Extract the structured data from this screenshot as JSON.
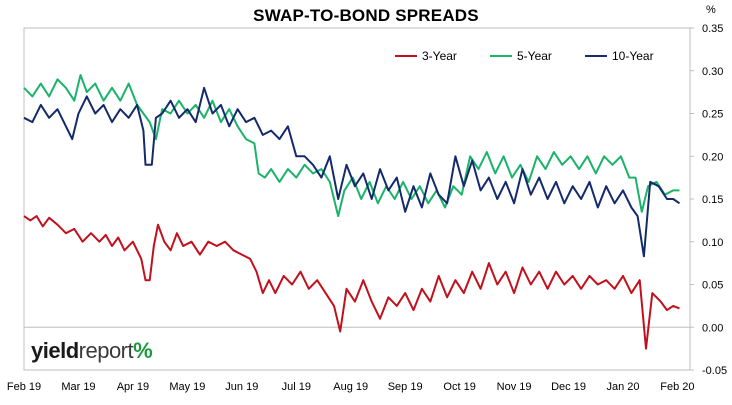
{
  "chart_data": {
    "type": "line",
    "title": "SWAP-TO-BOND SPREADS",
    "unit": "%",
    "x_tick_labels": [
      "Feb 19",
      "Mar 19",
      "Apr 19",
      "May 19",
      "Jun 19",
      "Jul 19",
      "Aug 19",
      "Sep 19",
      "Oct 19",
      "Nov 19",
      "Dec 19",
      "Jan 20",
      "Feb 20"
    ],
    "y_tick_labels": [
      "0.35",
      "0.30",
      "0.25",
      "0.20",
      "0.15",
      "0.10",
      "0.05",
      "0.00",
      "-0.05"
    ],
    "ylim": [
      -0.05,
      0.35
    ],
    "grid": false,
    "legend_position": "top-right",
    "x_units": "months since Feb 19 (0 = Feb 19, 12 = Feb 20)",
    "series": [
      {
        "name": "3-Year",
        "color": "#c0111d",
        "points": [
          [
            0,
            0.13
          ],
          [
            0.15,
            0.125
          ],
          [
            0.3,
            0.13
          ],
          [
            0.45,
            0.118
          ],
          [
            0.6,
            0.128
          ],
          [
            0.8,
            0.12
          ],
          [
            1,
            0.11
          ],
          [
            1.2,
            0.115
          ],
          [
            1.4,
            0.1
          ],
          [
            1.6,
            0.11
          ],
          [
            1.8,
            0.1
          ],
          [
            1.95,
            0.108
          ],
          [
            2.1,
            0.095
          ],
          [
            2.25,
            0.105
          ],
          [
            2.4,
            0.09
          ],
          [
            2.6,
            0.1
          ],
          [
            2.8,
            0.08
          ],
          [
            2.9,
            0.055
          ],
          [
            3.0,
            0.055
          ],
          [
            3.1,
            0.095
          ],
          [
            3.2,
            0.12
          ],
          [
            3.35,
            0.1
          ],
          [
            3.5,
            0.09
          ],
          [
            3.65,
            0.11
          ],
          [
            3.8,
            0.095
          ],
          [
            4.0,
            0.1
          ],
          [
            4.2,
            0.085
          ],
          [
            4.4,
            0.1
          ],
          [
            4.6,
            0.095
          ],
          [
            4.8,
            0.1
          ],
          [
            5.0,
            0.09
          ],
          [
            5.2,
            0.085
          ],
          [
            5.4,
            0.08
          ],
          [
            5.55,
            0.065
          ],
          [
            5.7,
            0.04
          ],
          [
            5.85,
            0.055
          ],
          [
            6.0,
            0.04
          ],
          [
            6.2,
            0.06
          ],
          [
            6.4,
            0.05
          ],
          [
            6.6,
            0.065
          ],
          [
            6.8,
            0.045
          ],
          [
            7.0,
            0.055
          ],
          [
            7.2,
            0.04
          ],
          [
            7.4,
            0.025
          ],
          [
            7.55,
            -0.005
          ],
          [
            7.7,
            0.045
          ],
          [
            7.9,
            0.03
          ],
          [
            8.1,
            0.055
          ],
          [
            8.3,
            0.03
          ],
          [
            8.5,
            0.01
          ],
          [
            8.7,
            0.035
          ],
          [
            8.9,
            0.025
          ],
          [
            9.1,
            0.04
          ],
          [
            9.3,
            0.02
          ],
          [
            9.5,
            0.045
          ],
          [
            9.7,
            0.03
          ],
          [
            9.9,
            0.06
          ],
          [
            10.1,
            0.035
          ],
          [
            10.3,
            0.055
          ],
          [
            10.5,
            0.04
          ],
          [
            10.7,
            0.065
          ],
          [
            10.9,
            0.045
          ],
          [
            11.1,
            0.075
          ],
          [
            11.3,
            0.05
          ],
          [
            11.5,
            0.065
          ],
          [
            11.7,
            0.04
          ],
          [
            11.9,
            0.07
          ],
          [
            12.1,
            0.05
          ],
          [
            12.3,
            0.065
          ],
          [
            12.5,
            0.045
          ],
          [
            12.7,
            0.065
          ],
          [
            12.9,
            0.05
          ],
          [
            13.1,
            0.06
          ],
          [
            13.3,
            0.045
          ],
          [
            13.5,
            0.06
          ],
          [
            13.7,
            0.05
          ],
          [
            13.9,
            0.055
          ],
          [
            14.1,
            0.045
          ],
          [
            14.3,
            0.06
          ],
          [
            14.5,
            0.04
          ],
          [
            14.7,
            0.055
          ],
          [
            14.85,
            -0.025
          ],
          [
            15.0,
            0.04
          ],
          [
            15.2,
            0.03
          ],
          [
            15.35,
            0.02
          ],
          [
            15.5,
            0.025
          ],
          [
            15.65,
            0.022
          ]
        ]
      },
      {
        "name": "5-Year",
        "color": "#1ab36a",
        "points": [
          [
            0,
            0.28
          ],
          [
            0.2,
            0.27
          ],
          [
            0.4,
            0.285
          ],
          [
            0.6,
            0.27
          ],
          [
            0.8,
            0.29
          ],
          [
            1.0,
            0.28
          ],
          [
            1.2,
            0.265
          ],
          [
            1.35,
            0.295
          ],
          [
            1.5,
            0.275
          ],
          [
            1.7,
            0.285
          ],
          [
            1.9,
            0.265
          ],
          [
            2.1,
            0.28
          ],
          [
            2.3,
            0.265
          ],
          [
            2.5,
            0.285
          ],
          [
            2.7,
            0.26
          ],
          [
            2.85,
            0.25
          ],
          [
            3.0,
            0.24
          ],
          [
            3.15,
            0.22
          ],
          [
            3.3,
            0.255
          ],
          [
            3.5,
            0.25
          ],
          [
            3.7,
            0.265
          ],
          [
            3.9,
            0.25
          ],
          [
            4.1,
            0.26
          ],
          [
            4.3,
            0.245
          ],
          [
            4.5,
            0.265
          ],
          [
            4.7,
            0.24
          ],
          [
            4.9,
            0.255
          ],
          [
            5.1,
            0.235
          ],
          [
            5.3,
            0.22
          ],
          [
            5.5,
            0.215
          ],
          [
            5.6,
            0.18
          ],
          [
            5.75,
            0.175
          ],
          [
            5.9,
            0.185
          ],
          [
            6.1,
            0.17
          ],
          [
            6.3,
            0.185
          ],
          [
            6.5,
            0.175
          ],
          [
            6.7,
            0.19
          ],
          [
            6.9,
            0.18
          ],
          [
            7.1,
            0.185
          ],
          [
            7.3,
            0.17
          ],
          [
            7.5,
            0.13
          ],
          [
            7.65,
            0.16
          ],
          [
            7.85,
            0.175
          ],
          [
            8.05,
            0.15
          ],
          [
            8.25,
            0.17
          ],
          [
            8.45,
            0.145
          ],
          [
            8.65,
            0.165
          ],
          [
            8.85,
            0.15
          ],
          [
            9.05,
            0.17
          ],
          [
            9.25,
            0.15
          ],
          [
            9.45,
            0.165
          ],
          [
            9.65,
            0.145
          ],
          [
            9.85,
            0.16
          ],
          [
            10.05,
            0.14
          ],
          [
            10.25,
            0.165
          ],
          [
            10.45,
            0.155
          ],
          [
            10.65,
            0.2
          ],
          [
            10.85,
            0.185
          ],
          [
            11.05,
            0.205
          ],
          [
            11.25,
            0.18
          ],
          [
            11.45,
            0.2
          ],
          [
            11.65,
            0.175
          ],
          [
            11.85,
            0.19
          ],
          [
            12.05,
            0.17
          ],
          [
            12.25,
            0.2
          ],
          [
            12.45,
            0.185
          ],
          [
            12.65,
            0.205
          ],
          [
            12.85,
            0.19
          ],
          [
            13.05,
            0.2
          ],
          [
            13.25,
            0.185
          ],
          [
            13.45,
            0.2
          ],
          [
            13.65,
            0.18
          ],
          [
            13.85,
            0.2
          ],
          [
            14.05,
            0.19
          ],
          [
            14.25,
            0.2
          ],
          [
            14.45,
            0.175
          ],
          [
            14.6,
            0.175
          ],
          [
            14.75,
            0.135
          ],
          [
            14.9,
            0.165
          ],
          [
            15.1,
            0.17
          ],
          [
            15.3,
            0.155
          ],
          [
            15.5,
            0.16
          ],
          [
            15.65,
            0.16
          ]
        ]
      },
      {
        "name": "10-Year",
        "color": "#142a6b",
        "points": [
          [
            0,
            0.245
          ],
          [
            0.2,
            0.24
          ],
          [
            0.4,
            0.26
          ],
          [
            0.6,
            0.245
          ],
          [
            0.8,
            0.255
          ],
          [
            1.0,
            0.235
          ],
          [
            1.15,
            0.22
          ],
          [
            1.3,
            0.25
          ],
          [
            1.5,
            0.27
          ],
          [
            1.7,
            0.25
          ],
          [
            1.9,
            0.26
          ],
          [
            2.1,
            0.24
          ],
          [
            2.3,
            0.255
          ],
          [
            2.5,
            0.245
          ],
          [
            2.7,
            0.26
          ],
          [
            2.85,
            0.23
          ],
          [
            2.9,
            0.19
          ],
          [
            3.05,
            0.19
          ],
          [
            3.15,
            0.245
          ],
          [
            3.3,
            0.25
          ],
          [
            3.5,
            0.265
          ],
          [
            3.7,
            0.245
          ],
          [
            3.9,
            0.255
          ],
          [
            4.1,
            0.24
          ],
          [
            4.3,
            0.28
          ],
          [
            4.5,
            0.25
          ],
          [
            4.7,
            0.26
          ],
          [
            4.9,
            0.235
          ],
          [
            5.1,
            0.255
          ],
          [
            5.3,
            0.24
          ],
          [
            5.5,
            0.245
          ],
          [
            5.7,
            0.225
          ],
          [
            5.9,
            0.23
          ],
          [
            6.1,
            0.22
          ],
          [
            6.3,
            0.235
          ],
          [
            6.5,
            0.2
          ],
          [
            6.7,
            0.2
          ],
          [
            6.9,
            0.19
          ],
          [
            7.1,
            0.175
          ],
          [
            7.3,
            0.2
          ],
          [
            7.5,
            0.15
          ],
          [
            7.7,
            0.19
          ],
          [
            7.9,
            0.165
          ],
          [
            8.1,
            0.18
          ],
          [
            8.3,
            0.15
          ],
          [
            8.5,
            0.185
          ],
          [
            8.7,
            0.16
          ],
          [
            8.9,
            0.175
          ],
          [
            9.1,
            0.135
          ],
          [
            9.3,
            0.165
          ],
          [
            9.5,
            0.14
          ],
          [
            9.7,
            0.18
          ],
          [
            9.9,
            0.155
          ],
          [
            10.1,
            0.145
          ],
          [
            10.3,
            0.2
          ],
          [
            10.5,
            0.165
          ],
          [
            10.7,
            0.195
          ],
          [
            10.9,
            0.16
          ],
          [
            11.1,
            0.175
          ],
          [
            11.3,
            0.15
          ],
          [
            11.5,
            0.17
          ],
          [
            11.7,
            0.145
          ],
          [
            11.9,
            0.185
          ],
          [
            12.1,
            0.155
          ],
          [
            12.3,
            0.175
          ],
          [
            12.5,
            0.15
          ],
          [
            12.7,
            0.17
          ],
          [
            12.9,
            0.145
          ],
          [
            13.1,
            0.165
          ],
          [
            13.3,
            0.15
          ],
          [
            13.5,
            0.17
          ],
          [
            13.7,
            0.14
          ],
          [
            13.9,
            0.165
          ],
          [
            14.1,
            0.145
          ],
          [
            14.3,
            0.16
          ],
          [
            14.5,
            0.14
          ],
          [
            14.65,
            0.13
          ],
          [
            14.8,
            0.083
          ],
          [
            14.95,
            0.17
          ],
          [
            15.15,
            0.165
          ],
          [
            15.35,
            0.15
          ],
          [
            15.5,
            0.15
          ],
          [
            15.65,
            0.145
          ]
        ]
      }
    ]
  },
  "logo": {
    "part1": "yield",
    "part2": "report",
    "part3": "%"
  }
}
